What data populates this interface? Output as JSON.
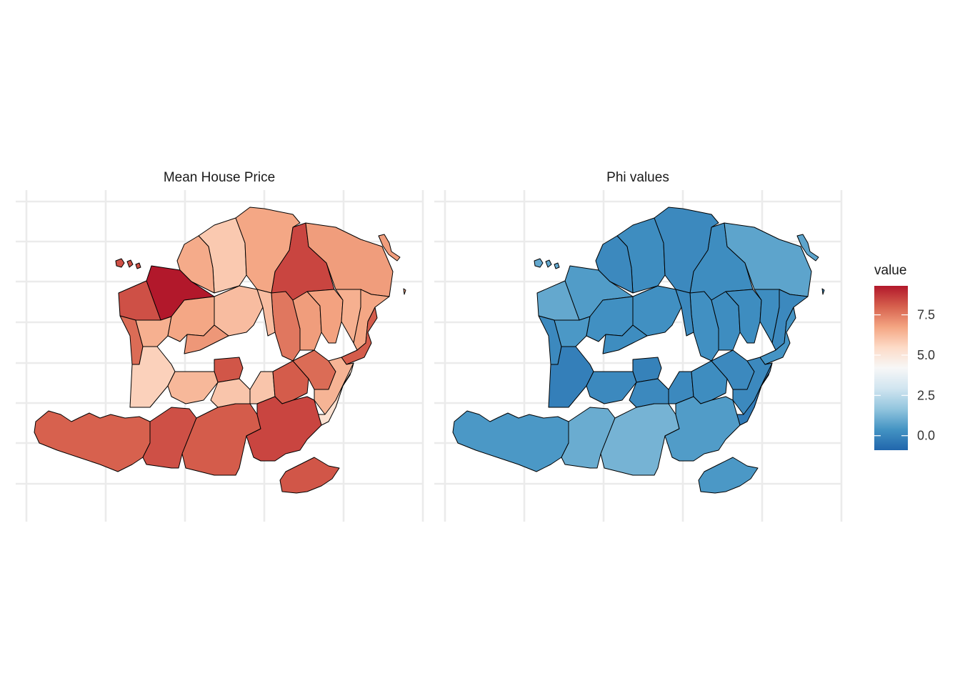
{
  "panels": [
    {
      "title": "Mean House Price",
      "palette": "red"
    },
    {
      "title": "Phi values",
      "palette": "blue"
    }
  ],
  "legend": {
    "title": "value",
    "range": [
      -0.9,
      9.3
    ],
    "ticks": [
      {
        "value": 0.0,
        "label": "0.0"
      },
      {
        "value": 2.5,
        "label": "2.5"
      },
      {
        "value": 5.0,
        "label": "5.0"
      },
      {
        "value": 7.5,
        "label": "7.5"
      }
    ],
    "colors": [
      "#2166ac",
      "#4393c3",
      "#92c5de",
      "#d1e5f0",
      "#f7f7f7",
      "#fddbc7",
      "#f4a582",
      "#d6604d",
      "#b2182b"
    ]
  },
  "map_data": {
    "fill_variable": "value",
    "regions": [
      {
        "house_price": 9.3,
        "phi": 0.6
      },
      {
        "house_price": 8.3,
        "phi": 0.9
      },
      {
        "house_price": 8.5,
        "phi": 0.2
      },
      {
        "house_price": 6.9,
        "phi": 0.8
      },
      {
        "house_price": 5.9,
        "phi": 0.2
      },
      {
        "house_price": 6.7,
        "phi": 0.1
      },
      {
        "house_price": 6.6,
        "phi": 0.1
      },
      {
        "house_price": 7.8,
        "phi": 0.1
      },
      {
        "house_price": 6.5,
        "phi": 0.5
      },
      {
        "house_price": 6.7,
        "phi": 0.3
      },
      {
        "house_price": 6.2,
        "phi": 0.3
      },
      {
        "house_price": 7.6,
        "phi": 0.3
      },
      {
        "house_price": 6.9,
        "phi": 0.2
      },
      {
        "house_price": 6.8,
        "phi": 0.2
      },
      {
        "house_price": 6.5,
        "phi": 0.2
      },
      {
        "house_price": 6.7,
        "phi": 0.1
      },
      {
        "house_price": 8.1,
        "phi": 0.4
      },
      {
        "house_price": 6.2,
        "phi": 0.1
      },
      {
        "house_price": 7.0,
        "phi": 0.2
      },
      {
        "house_price": 8.2,
        "phi": -0.1
      },
      {
        "house_price": 5.7,
        "phi": -0.2
      },
      {
        "house_price": 6.3,
        "phi": 0.1
      },
      {
        "house_price": 6.0,
        "phi": 0.1
      },
      {
        "house_price": 6.0,
        "phi": 0.1
      },
      {
        "house_price": 8.1,
        "phi": 0.2
      },
      {
        "house_price": 7.8,
        "phi": 0.1
      },
      {
        "house_price": 6.4,
        "phi": 0.1
      },
      {
        "house_price": 5.2,
        "phi": -0.3
      },
      {
        "house_price": 8.0,
        "phi": 0.5
      },
      {
        "house_price": 8.3,
        "phi": 1.0
      },
      {
        "house_price": 8.1,
        "phi": 1.2
      },
      {
        "house_price": 8.5,
        "phi": 0.6
      },
      {
        "house_price": 8.2,
        "phi": 0.5
      }
    ]
  }
}
